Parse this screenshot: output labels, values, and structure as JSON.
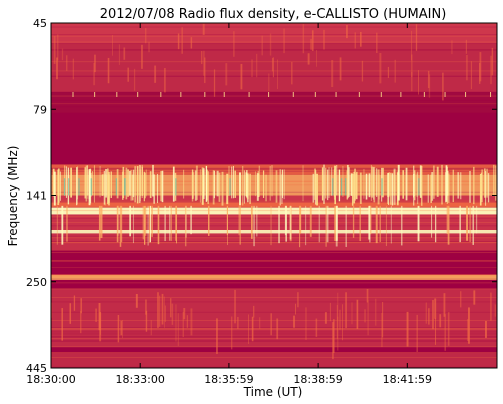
{
  "chart_data": {
    "type": "heatmap",
    "title": "2012/07/08  Radio flux density, e-CALLISTO (HUMAIN)",
    "xlabel": "Time (UT)",
    "ylabel": "Frequency (MHz)",
    "x_ticks": [
      "18:30:00",
      "18:33:00",
      "18:35:59",
      "18:38:59",
      "18:41:59"
    ],
    "y_ticks": [
      "45",
      "79",
      "141",
      "250",
      "445"
    ],
    "ylim": [
      45,
      445
    ],
    "xlim": [
      "18:30:00",
      "18:45:00"
    ],
    "grid": false,
    "colors": {
      "background": "#a5103f",
      "low": "#9e0142",
      "mid": "#d53e4f",
      "warm": "#f46d43",
      "hot": "#fdae61",
      "bright": "#fee08b",
      "peak": "#ffffbf",
      "cool": "#66c2a5"
    }
  }
}
